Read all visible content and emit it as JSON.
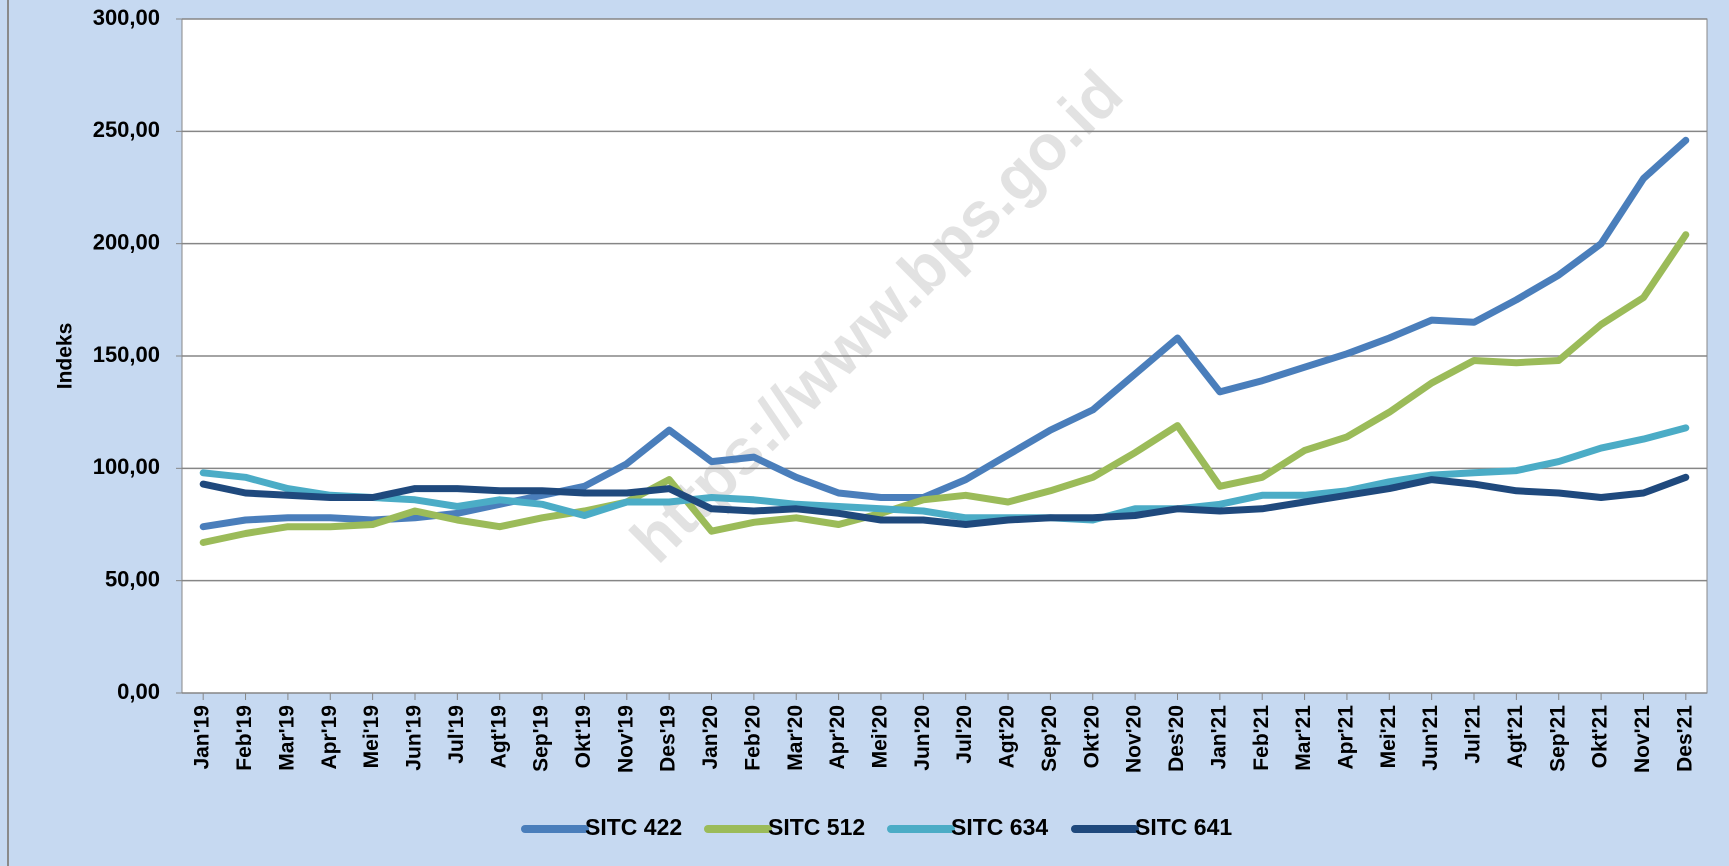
{
  "chart_data": {
    "type": "line",
    "y_label": "Indeks",
    "watermark": "https://www.bps.go.id",
    "categories": [
      "Jan'19",
      "Feb'19",
      "Mar'19",
      "Apr'19",
      "Mei'19",
      "Jun'19",
      "Jul'19",
      "Agt'19",
      "Sep'19",
      "Okt'19",
      "Nov'19",
      "Des'19",
      "Jan'20",
      "Feb'20",
      "Mar'20",
      "Apr'20",
      "Mei'20",
      "Jun'20",
      "Jul'20",
      "Agt'20",
      "Sep'20",
      "Okt'20",
      "Nov'20",
      "Des'20",
      "Jan'21",
      "Feb'21",
      "Mar'21",
      "Apr'21",
      "Mei'21",
      "Jun'21",
      "Jul'21",
      "Agt'21",
      "Sep'21",
      "Okt'21",
      "Nov'21",
      "Des'21"
    ],
    "series": [
      {
        "name": "SITC 422",
        "color": "#4a7ebb",
        "values": [
          74,
          77,
          78,
          78,
          77,
          78,
          80,
          84,
          88,
          92,
          102,
          117,
          103,
          105,
          96,
          89,
          87,
          87,
          95,
          106,
          117,
          126,
          142,
          158,
          134,
          139,
          145,
          151,
          158,
          166,
          165,
          175,
          186,
          200,
          229,
          246
        ]
      },
      {
        "name": "SITC 512",
        "color": "#9bbb59",
        "values": [
          67,
          71,
          74,
          74,
          75,
          81,
          77,
          74,
          78,
          81,
          85,
          95,
          72,
          76,
          78,
          75,
          80,
          86,
          88,
          85,
          90,
          96,
          107,
          119,
          92,
          96,
          108,
          114,
          125,
          138,
          148,
          147,
          148,
          164,
          176,
          204
        ]
      },
      {
        "name": "SITC 634",
        "color": "#4bacc6",
        "values": [
          98,
          96,
          91,
          88,
          87,
          86,
          83,
          86,
          84,
          79,
          85,
          85,
          87,
          86,
          84,
          83,
          82,
          81,
          78,
          78,
          78,
          77,
          82,
          82,
          84,
          88,
          88,
          90,
          94,
          97,
          98,
          99,
          103,
          109,
          113,
          118
        ]
      },
      {
        "name": "SITC 641",
        "color": "#1f497d",
        "values": [
          93,
          89,
          88,
          87,
          87,
          91,
          91,
          90,
          90,
          89,
          89,
          91,
          82,
          81,
          82,
          80,
          77,
          77,
          75,
          77,
          78,
          78,
          79,
          82,
          81,
          82,
          85,
          88,
          91,
          95,
          93,
          90,
          89,
          87,
          89,
          96
        ]
      }
    ],
    "ylim": [
      0,
      300
    ],
    "yticks": [
      {
        "value": 0,
        "label": "0,00"
      },
      {
        "value": 50,
        "label": "50,00"
      },
      {
        "value": 100,
        "label": "100,00"
      },
      {
        "value": 150,
        "label": "150,00"
      },
      {
        "value": 200,
        "label": "200,00"
      },
      {
        "value": 250,
        "label": "250,00"
      },
      {
        "value": 300,
        "label": "300,00"
      }
    ],
    "grid": true
  }
}
